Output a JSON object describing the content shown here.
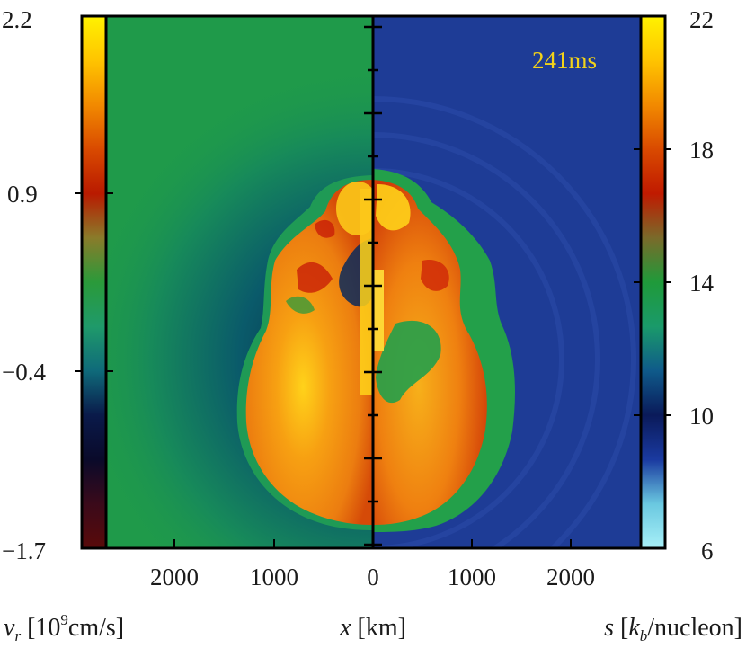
{
  "left_colorbar": {
    "ticks": [
      "2.2",
      "0.9",
      "−0.4",
      "−1.7"
    ],
    "label_symbol": "v",
    "label_sub": "r",
    "label_rest": " [10",
    "label_sup": "9",
    "label_unit": "cm/s]",
    "colors": [
      "#fff200",
      "#ffc400",
      "#f28a00",
      "#d94a00",
      "#b91a00",
      "#8a7b2a",
      "#2a9a3a",
      "#1f9a6a",
      "#0f6a7a",
      "#0a1a4a",
      "#0a0a2a",
      "#3a0a1a",
      "#5a0a0a"
    ]
  },
  "right_colorbar": {
    "ticks": [
      "22",
      "18",
      "14",
      "10",
      "6"
    ],
    "label_symbol": "s",
    "label_open": " [",
    "label_k": "k",
    "label_sub": "b",
    "label_rest": "/nucleon]",
    "colors": [
      "#fff200",
      "#ffc400",
      "#f28a00",
      "#d94a00",
      "#c01a00",
      "#7a6a2a",
      "#1f9a3a",
      "#1a9a6a",
      "#0f5a8a",
      "#0a1a5a",
      "#1a3aa0",
      "#6ac8e0",
      "#a8f0f8"
    ]
  },
  "x_axis": {
    "ticks": [
      "2000",
      "1000",
      "0",
      "1000",
      "2000"
    ],
    "label_symbol": "x",
    "label_unit": " [km]"
  },
  "annotation": {
    "time": "241ms"
  },
  "colors": {
    "left_background": "#1f9a4a",
    "right_background": "#1e3c96",
    "time_text": "#f2d21a",
    "frame": "#000000"
  }
}
